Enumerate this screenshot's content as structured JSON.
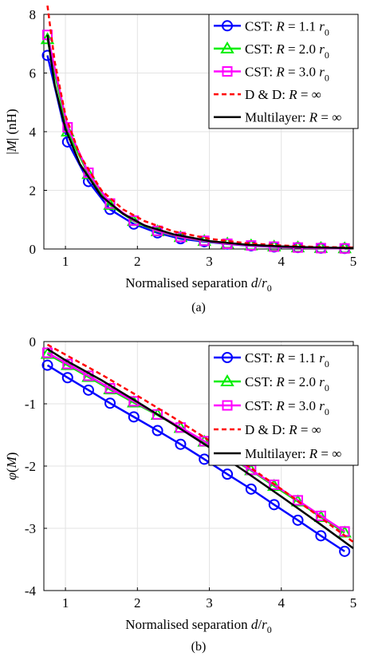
{
  "chart_data": [
    {
      "type": "line",
      "panel": "(a)",
      "xlabel": "Normalised separation d/r",
      "xlabel_sub": "0",
      "ylabel": "|M| (nH)",
      "xlim": [
        0.7,
        5
      ],
      "ylim": [
        0,
        8
      ],
      "xticks": [
        1,
        2,
        3,
        4,
        5
      ],
      "yticks": [
        0,
        2,
        4,
        6,
        8
      ],
      "grid": true,
      "legend_position": "top-right",
      "series": [
        {
          "name": "CST: R = 1.1 r0",
          "color": "#0000ff",
          "marker": "circle",
          "dash": "",
          "x": [
            0.75,
            1.03,
            1.32,
            1.62,
            1.95,
            2.28,
            2.6,
            2.93,
            3.25,
            3.58,
            3.9,
            4.23,
            4.55,
            4.88
          ],
          "y": [
            6.6,
            3.65,
            2.3,
            1.35,
            0.85,
            0.55,
            0.35,
            0.25,
            0.17,
            0.11,
            0.07,
            0.05,
            0.03,
            0.02
          ]
        },
        {
          "name": "CST: R = 2.0 r0",
          "color": "#00ee00",
          "marker": "triangle",
          "dash": "",
          "x": [
            0.75,
            1.03,
            1.32,
            1.62,
            1.95,
            2.28,
            2.6,
            2.93,
            3.25,
            3.58,
            3.9,
            4.23,
            4.55,
            4.88
          ],
          "y": [
            7.15,
            4.0,
            2.55,
            1.5,
            0.95,
            0.6,
            0.4,
            0.27,
            0.18,
            0.12,
            0.08,
            0.05,
            0.03,
            0.02
          ]
        },
        {
          "name": "CST: R = 3.0 r0",
          "color": "#ff00ff",
          "marker": "square",
          "dash": "",
          "x": [
            0.75,
            1.03,
            1.32,
            1.62,
            1.95,
            2.28,
            2.6,
            2.93,
            3.25,
            3.58,
            3.9,
            4.23,
            4.55,
            4.88
          ],
          "y": [
            7.3,
            4.15,
            2.6,
            1.55,
            0.97,
            0.62,
            0.41,
            0.28,
            0.18,
            0.12,
            0.08,
            0.05,
            0.03,
            0.02
          ]
        },
        {
          "name": "D & D: R = ∞",
          "color": "#ff0000",
          "marker": "none",
          "dash": "6,4",
          "x": [
            0.75,
            0.85,
            1.0,
            1.2,
            1.5,
            1.8,
            2.1,
            2.5,
            3.0,
            3.5,
            4.0,
            4.5,
            5.0
          ],
          "y": [
            8.3,
            6.4,
            4.55,
            3.2,
            2.0,
            1.35,
            0.95,
            0.6,
            0.35,
            0.2,
            0.12,
            0.07,
            0.05
          ]
        },
        {
          "name": "Multilayer: R = ∞",
          "color": "#000000",
          "marker": "none",
          "dash": "",
          "x": [
            0.75,
            0.85,
            1.0,
            1.2,
            1.5,
            1.8,
            2.1,
            2.5,
            3.0,
            3.5,
            4.0,
            4.5,
            5.0
          ],
          "y": [
            7.3,
            5.6,
            4.1,
            2.9,
            1.8,
            1.2,
            0.8,
            0.5,
            0.27,
            0.15,
            0.09,
            0.05,
            0.03
          ]
        }
      ]
    },
    {
      "type": "line",
      "panel": "(b)",
      "xlabel": "Normalised separation d/r",
      "xlabel_sub": "0",
      "ylabel": "φ(M)",
      "xlim": [
        0.7,
        5
      ],
      "ylim": [
        -4,
        0
      ],
      "xticks": [
        1,
        2,
        3,
        4,
        5
      ],
      "yticks": [
        0,
        -1,
        -2,
        -3,
        -4
      ],
      "grid": true,
      "legend_position": "top-right",
      "series": [
        {
          "name": "CST: R = 1.1 r0",
          "color": "#0000ff",
          "marker": "circle",
          "dash": "",
          "x": [
            0.75,
            1.03,
            1.32,
            1.62,
            1.95,
            2.28,
            2.6,
            2.93,
            3.25,
            3.58,
            3.9,
            4.23,
            4.55,
            4.88
          ],
          "y": [
            -0.38,
            -0.58,
            -0.78,
            -0.99,
            -1.21,
            -1.43,
            -1.65,
            -1.89,
            -2.13,
            -2.37,
            -2.62,
            -2.87,
            -3.12,
            -3.37
          ]
        },
        {
          "name": "CST: R = 2.0 r0",
          "color": "#00ee00",
          "marker": "triangle",
          "dash": "",
          "x": [
            0.75,
            1.03,
            1.32,
            1.62,
            1.95,
            2.28,
            2.6,
            2.93,
            3.25,
            3.58,
            3.9,
            4.23,
            4.55,
            4.88
          ],
          "y": [
            -0.2,
            -0.38,
            -0.57,
            -0.77,
            -0.98,
            -1.18,
            -1.39,
            -1.61,
            -1.84,
            -2.07,
            -2.32,
            -2.57,
            -2.82,
            -3.07
          ]
        },
        {
          "name": "CST: R = 3.0 r0",
          "color": "#ff00ff",
          "marker": "square",
          "dash": "",
          "x": [
            0.75,
            1.03,
            1.32,
            1.62,
            1.95,
            2.28,
            2.6,
            2.93,
            3.25,
            3.58,
            3.9,
            4.23,
            4.55,
            4.88
          ],
          "y": [
            -0.18,
            -0.36,
            -0.55,
            -0.75,
            -0.96,
            -1.17,
            -1.38,
            -1.6,
            -1.83,
            -2.06,
            -2.3,
            -2.55,
            -2.8,
            -3.05
          ]
        },
        {
          "name": "D & D: R = ∞",
          "color": "#ff0000",
          "marker": "none",
          "dash": "6,4",
          "x": [
            0.75,
            1.0,
            1.5,
            2.0,
            2.5,
            3.0,
            3.5,
            4.0,
            4.5,
            5.0
          ],
          "y": [
            -0.05,
            -0.21,
            -0.53,
            -0.87,
            -1.22,
            -1.59,
            -1.97,
            -2.37,
            -2.79,
            -3.22
          ]
        },
        {
          "name": "Multilayer: R = ∞",
          "color": "#000000",
          "marker": "none",
          "dash": "",
          "x": [
            0.75,
            1.0,
            1.5,
            2.0,
            2.5,
            3.0,
            3.5,
            4.0,
            4.5,
            5.0
          ],
          "y": [
            -0.12,
            -0.3,
            -0.62,
            -0.97,
            -1.33,
            -1.7,
            -2.09,
            -2.49,
            -2.9,
            -3.32
          ]
        }
      ]
    }
  ],
  "legend": [
    {
      "prefix": "CST: ",
      "var": "R",
      "rest": " = 1.1 ",
      "tail_var": "r",
      "tail_sub": "0"
    },
    {
      "prefix": "CST: ",
      "var": "R",
      "rest": " = 2.0 ",
      "tail_var": "r",
      "tail_sub": "0"
    },
    {
      "prefix": "CST: ",
      "var": "R",
      "rest": " = 3.0 ",
      "tail_var": "r",
      "tail_sub": "0"
    },
    {
      "prefix": "D & D: ",
      "var": "R",
      "rest": " = ∞",
      "tail_var": "",
      "tail_sub": ""
    },
    {
      "prefix": "Multilayer: ",
      "var": "R",
      "rest": " = ∞",
      "tail_var": "",
      "tail_sub": ""
    }
  ]
}
